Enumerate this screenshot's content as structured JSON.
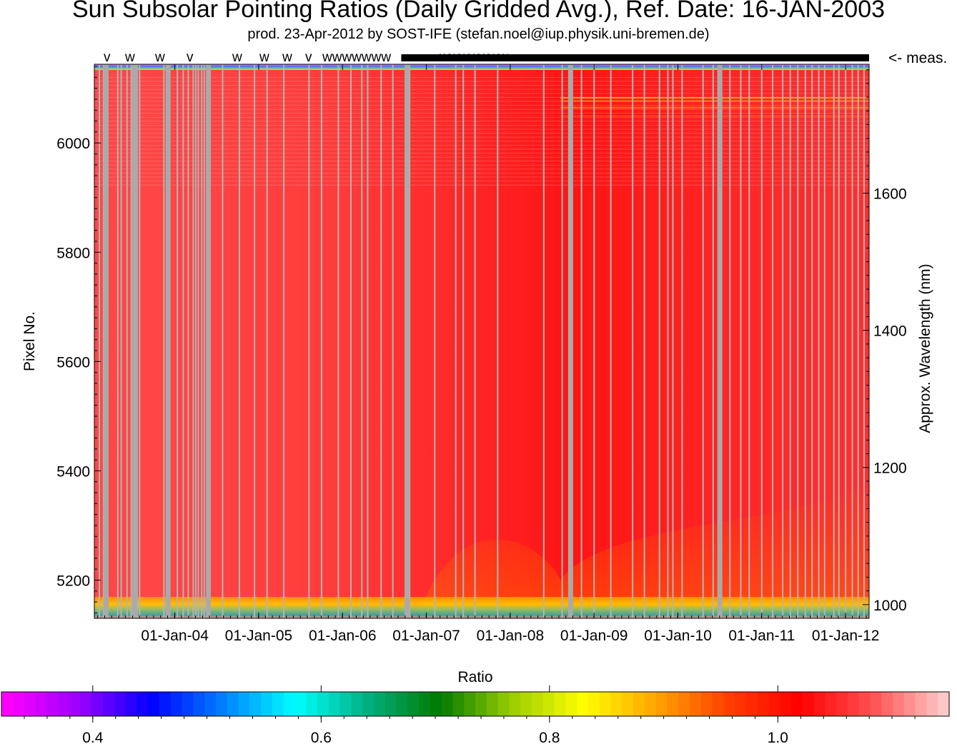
{
  "chart_data": [
    {
      "type": "heatmap",
      "title": "Sun Subsolar Pointing Ratios (Daily Gridded Avg.), Ref. Date: 16-JAN-2003",
      "subtitle": "prod. 23-Apr-2012 by SOST-IFE (stefan.noel@iup.physik.uni-bremen.de)",
      "xlabel": "",
      "x_tick_labels": [
        "01-Jan-04",
        "01-Jan-05",
        "01-Jan-06",
        "01-Jan-07",
        "01-Jan-08",
        "01-Jan-09",
        "01-Jan-10",
        "01-Jan-11",
        "01-Jan-12"
      ],
      "x_tick_years": [
        2004,
        2005,
        2006,
        2007,
        2008,
        2009,
        2010,
        2011,
        2012
      ],
      "xlim": [
        2003.04,
        2012.28
      ],
      "ylabel": "Pixel No.",
      "y_ticks": [
        5200,
        5400,
        5600,
        5800,
        6000
      ],
      "ylim": [
        5130,
        6144
      ],
      "y2label": "Approx. Wavelength (nm)",
      "y2_ticks": [
        1000,
        1200,
        1400,
        1600
      ],
      "y2lim": [
        980,
        1788
      ],
      "measurement_marker_label": "<- meas.",
      "measurement_marker_symbols": [
        "v",
        "w",
        "w",
        "v",
        "w",
        "w",
        "w",
        "v",
        "wwwwwww",
        "wwwwwww"
      ],
      "gap_years": [
        2003.1,
        2003.15,
        2003.2,
        2003.32,
        2003.36,
        2003.43,
        2003.48,
        2003.55,
        2003.58,
        2003.87,
        2003.9,
        2004.03,
        2004.1,
        2004.16,
        2004.22,
        2004.25,
        2004.28,
        2004.32,
        2004.35,
        2004.4,
        2004.57,
        2004.77,
        2004.95,
        2005.1,
        2005.3,
        2005.6,
        2005.75,
        2005.95,
        2006.1,
        2006.23,
        2006.3,
        2006.46,
        2006.6,
        2006.75,
        2006.8,
        2007.1,
        2007.35,
        2007.44,
        2007.58,
        2007.85,
        2008.4,
        2008.62,
        2008.85,
        2009.0,
        2009.2,
        2009.46,
        2009.6,
        2009.78,
        2009.88,
        2009.94,
        2010.05,
        2010.3,
        2010.42,
        2010.62,
        2010.75,
        2010.85,
        2011.0,
        2011.13,
        2011.25,
        2011.34,
        2011.43,
        2011.52,
        2011.6,
        2011.68,
        2011.75,
        2011.86,
        2011.92,
        2012.0,
        2012.08,
        2012.15,
        2012.22
      ],
      "wide_gap_years": [
        2003.18,
        2003.52,
        2003.92,
        2004.4,
        2006.77,
        2008.72,
        2010.5
      ]
    },
    {
      "type": "heatmap",
      "title": "Ratio",
      "colorbar_ticks": [
        0.4,
        0.6,
        0.8,
        1.0
      ],
      "colorbar_tick_labels": [
        "0.4",
        "0.6",
        "0.8",
        "1.0"
      ],
      "colorbar_range": [
        0.32,
        1.15
      ],
      "colormap_colors": [
        "#ff00ff",
        "#9a00ff",
        "#0000ff",
        "#0080ff",
        "#00ffff",
        "#00b080",
        "#007a00",
        "#9acd00",
        "#ffff00",
        "#ffa500",
        "#ff4000",
        "#ff0000",
        "#ff5050",
        "#ffc8c8"
      ]
    }
  ]
}
